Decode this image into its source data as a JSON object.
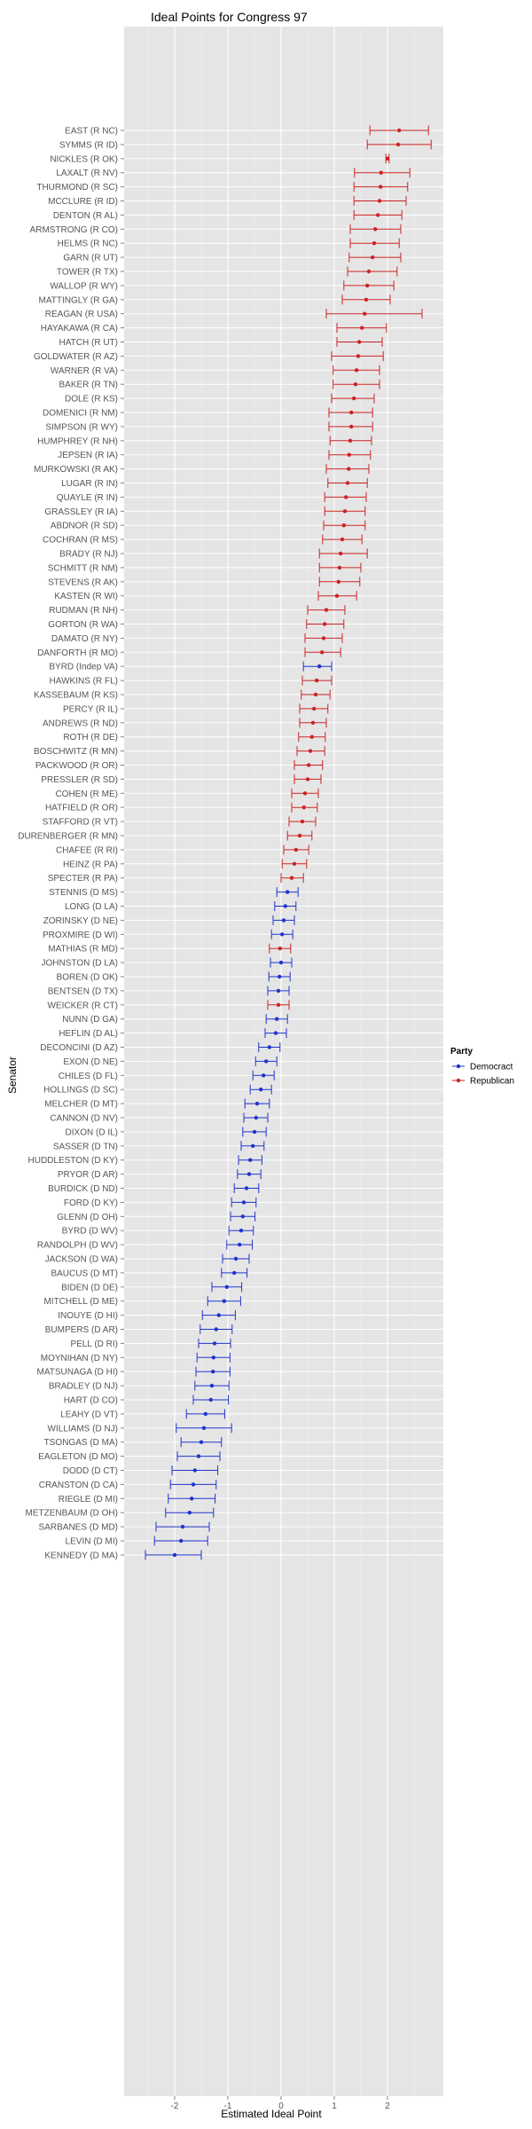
{
  "chart_data": {
    "type": "scatter",
    "title": "Ideal Points for Congress 97",
    "xlabel": "Estimated Ideal Point",
    "ylabel": "Senator",
    "xlim": [
      -2.95,
      3.05
    ],
    "x_ticks": [
      -2,
      -1,
      0,
      1,
      2
    ],
    "grid": true,
    "legend": {
      "title": "Party",
      "position": "right",
      "entries": [
        {
          "name": "Democract",
          "color": "#1f33cc"
        },
        {
          "name": "Republican",
          "color": "#cc2222"
        }
      ]
    },
    "colors": {
      "D": "#1f33cc",
      "R": "#cc2222",
      "panel": "#e5e5e5",
      "grid": "#ffffff"
    },
    "senators": [
      {
        "name": "EAST (R NC)",
        "party": "R",
        "x": 2.22,
        "lo": 1.67,
        "hi": 2.77
      },
      {
        "name": "SYMMS (R ID)",
        "party": "R",
        "x": 2.2,
        "lo": 1.62,
        "hi": 2.82
      },
      {
        "name": "NICKLES (R OK)",
        "party": "R",
        "x": 2.0,
        "lo": 1.97,
        "hi": 2.03
      },
      {
        "name": "LAXALT (R NV)",
        "party": "R",
        "x": 1.88,
        "lo": 1.38,
        "hi": 2.42
      },
      {
        "name": "THURMOND (R SC)",
        "party": "R",
        "x": 1.87,
        "lo": 1.37,
        "hi": 2.38
      },
      {
        "name": "MCCLURE (R ID)",
        "party": "R",
        "x": 1.85,
        "lo": 1.37,
        "hi": 2.35
      },
      {
        "name": "DENTON (R AL)",
        "party": "R",
        "x": 1.82,
        "lo": 1.37,
        "hi": 2.27
      },
      {
        "name": "ARMSTRONG (R CO)",
        "party": "R",
        "x": 1.77,
        "lo": 1.3,
        "hi": 2.25
      },
      {
        "name": "HELMS (R NC)",
        "party": "R",
        "x": 1.75,
        "lo": 1.3,
        "hi": 2.22
      },
      {
        "name": "GARN (R UT)",
        "party": "R",
        "x": 1.72,
        "lo": 1.28,
        "hi": 2.25
      },
      {
        "name": "TOWER (R TX)",
        "party": "R",
        "x": 1.65,
        "lo": 1.25,
        "hi": 2.18
      },
      {
        "name": "WALLOP (R WY)",
        "party": "R",
        "x": 1.62,
        "lo": 1.18,
        "hi": 2.12
      },
      {
        "name": "MATTINGLY (R GA)",
        "party": "R",
        "x": 1.6,
        "lo": 1.15,
        "hi": 2.05
      },
      {
        "name": "REAGAN (R USA)",
        "party": "R",
        "x": 1.57,
        "lo": 0.85,
        "hi": 2.65
      },
      {
        "name": "HAYAKAWA (R CA)",
        "party": "R",
        "x": 1.52,
        "lo": 1.05,
        "hi": 1.98
      },
      {
        "name": "HATCH (R UT)",
        "party": "R",
        "x": 1.47,
        "lo": 1.05,
        "hi": 1.9
      },
      {
        "name": "GOLDWATER (R AZ)",
        "party": "R",
        "x": 1.45,
        "lo": 0.95,
        "hi": 1.92
      },
      {
        "name": "WARNER (R VA)",
        "party": "R",
        "x": 1.42,
        "lo": 0.98,
        "hi": 1.85
      },
      {
        "name": "BAKER (R TN)",
        "party": "R",
        "x": 1.4,
        "lo": 0.98,
        "hi": 1.85
      },
      {
        "name": "DOLE (R KS)",
        "party": "R",
        "x": 1.37,
        "lo": 0.95,
        "hi": 1.75
      },
      {
        "name": "DOMENICI (R NM)",
        "party": "R",
        "x": 1.32,
        "lo": 0.9,
        "hi": 1.72
      },
      {
        "name": "SIMPSON (R WY)",
        "party": "R",
        "x": 1.32,
        "lo": 0.9,
        "hi": 1.72
      },
      {
        "name": "HUMPHREY (R NH)",
        "party": "R",
        "x": 1.3,
        "lo": 0.92,
        "hi": 1.7
      },
      {
        "name": "JEPSEN (R IA)",
        "party": "R",
        "x": 1.28,
        "lo": 0.9,
        "hi": 1.68
      },
      {
        "name": "MURKOWSKI (R AK)",
        "party": "R",
        "x": 1.27,
        "lo": 0.85,
        "hi": 1.65
      },
      {
        "name": "LUGAR (R IN)",
        "party": "R",
        "x": 1.25,
        "lo": 0.88,
        "hi": 1.62
      },
      {
        "name": "QUAYLE (R IN)",
        "party": "R",
        "x": 1.22,
        "lo": 0.82,
        "hi": 1.6
      },
      {
        "name": "GRASSLEY (R IA)",
        "party": "R",
        "x": 1.2,
        "lo": 0.82,
        "hi": 1.58
      },
      {
        "name": "ABDNOR (R SD)",
        "party": "R",
        "x": 1.18,
        "lo": 0.8,
        "hi": 1.58
      },
      {
        "name": "COCHRAN (R MS)",
        "party": "R",
        "x": 1.15,
        "lo": 0.78,
        "hi": 1.52
      },
      {
        "name": "BRADY (R NJ)",
        "party": "R",
        "x": 1.12,
        "lo": 0.72,
        "hi": 1.62
      },
      {
        "name": "SCHMITT (R NM)",
        "party": "R",
        "x": 1.1,
        "lo": 0.72,
        "hi": 1.5
      },
      {
        "name": "STEVENS (R AK)",
        "party": "R",
        "x": 1.08,
        "lo": 0.72,
        "hi": 1.48
      },
      {
        "name": "KASTEN (R WI)",
        "party": "R",
        "x": 1.05,
        "lo": 0.7,
        "hi": 1.42
      },
      {
        "name": "RUDMAN (R NH)",
        "party": "R",
        "x": 0.85,
        "lo": 0.5,
        "hi": 1.2
      },
      {
        "name": "GORTON (R WA)",
        "party": "R",
        "x": 0.82,
        "lo": 0.48,
        "hi": 1.18
      },
      {
        "name": "DAMATO (R NY)",
        "party": "R",
        "x": 0.8,
        "lo": 0.45,
        "hi": 1.15
      },
      {
        "name": "DANFORTH (R MO)",
        "party": "R",
        "x": 0.77,
        "lo": 0.45,
        "hi": 1.12
      },
      {
        "name": "BYRD (Indep VA)",
        "party": "D",
        "x": 0.72,
        "lo": 0.42,
        "hi": 0.95
      },
      {
        "name": "HAWKINS (R FL)",
        "party": "R",
        "x": 0.67,
        "lo": 0.4,
        "hi": 0.95
      },
      {
        "name": "KASSEBAUM (R KS)",
        "party": "R",
        "x": 0.65,
        "lo": 0.38,
        "hi": 0.92
      },
      {
        "name": "PERCY (R IL)",
        "party": "R",
        "x": 0.62,
        "lo": 0.35,
        "hi": 0.88
      },
      {
        "name": "ANDREWS (R ND)",
        "party": "R",
        "x": 0.6,
        "lo": 0.35,
        "hi": 0.85
      },
      {
        "name": "ROTH (R DE)",
        "party": "R",
        "x": 0.58,
        "lo": 0.33,
        "hi": 0.83
      },
      {
        "name": "BOSCHWITZ (R MN)",
        "party": "R",
        "x": 0.55,
        "lo": 0.3,
        "hi": 0.82
      },
      {
        "name": "PACKWOOD (R OR)",
        "party": "R",
        "x": 0.52,
        "lo": 0.25,
        "hi": 0.78
      },
      {
        "name": "PRESSLER (R SD)",
        "party": "R",
        "x": 0.5,
        "lo": 0.25,
        "hi": 0.75
      },
      {
        "name": "COHEN (R ME)",
        "party": "R",
        "x": 0.45,
        "lo": 0.2,
        "hi": 0.7
      },
      {
        "name": "HATFIELD (R OR)",
        "party": "R",
        "x": 0.43,
        "lo": 0.2,
        "hi": 0.68
      },
      {
        "name": "STAFFORD (R VT)",
        "party": "R",
        "x": 0.4,
        "lo": 0.15,
        "hi": 0.65
      },
      {
        "name": "DURENBERGER (R MN)",
        "party": "R",
        "x": 0.35,
        "lo": 0.12,
        "hi": 0.58
      },
      {
        "name": "CHAFEE (R RI)",
        "party": "R",
        "x": 0.28,
        "lo": 0.05,
        "hi": 0.52
      },
      {
        "name": "HEINZ (R PA)",
        "party": "R",
        "x": 0.25,
        "lo": 0.02,
        "hi": 0.48
      },
      {
        "name": "SPECTER (R PA)",
        "party": "R",
        "x": 0.2,
        "lo": 0.0,
        "hi": 0.42
      },
      {
        "name": "STENNIS (D MS)",
        "party": "D",
        "x": 0.12,
        "lo": -0.08,
        "hi": 0.32
      },
      {
        "name": "LONG (D LA)",
        "party": "D",
        "x": 0.08,
        "lo": -0.12,
        "hi": 0.28
      },
      {
        "name": "ZORINSKY (D NE)",
        "party": "D",
        "x": 0.05,
        "lo": -0.15,
        "hi": 0.25
      },
      {
        "name": "PROXMIRE (D WI)",
        "party": "D",
        "x": 0.02,
        "lo": -0.18,
        "hi": 0.22
      },
      {
        "name": "MATHIAS (R MD)",
        "party": "R",
        "x": -0.02,
        "lo": -0.22,
        "hi": 0.18
      },
      {
        "name": "JOHNSTON (D LA)",
        "party": "D",
        "x": 0.0,
        "lo": -0.2,
        "hi": 0.2
      },
      {
        "name": "BOREN (D OK)",
        "party": "D",
        "x": -0.03,
        "lo": -0.23,
        "hi": 0.17
      },
      {
        "name": "BENTSEN (D TX)",
        "party": "D",
        "x": -0.05,
        "lo": -0.25,
        "hi": 0.15
      },
      {
        "name": "WEICKER (R CT)",
        "party": "R",
        "x": -0.05,
        "lo": -0.25,
        "hi": 0.15
      },
      {
        "name": "NUNN (D GA)",
        "party": "D",
        "x": -0.08,
        "lo": -0.28,
        "hi": 0.12
      },
      {
        "name": "HEFLIN (D AL)",
        "party": "D",
        "x": -0.1,
        "lo": -0.3,
        "hi": 0.1
      },
      {
        "name": "DECONCINI (D AZ)",
        "party": "D",
        "x": -0.22,
        "lo": -0.42,
        "hi": -0.02
      },
      {
        "name": "EXON (D NE)",
        "party": "D",
        "x": -0.28,
        "lo": -0.48,
        "hi": -0.08
      },
      {
        "name": "CHILES (D FL)",
        "party": "D",
        "x": -0.33,
        "lo": -0.53,
        "hi": -0.13
      },
      {
        "name": "HOLLINGS (D SC)",
        "party": "D",
        "x": -0.38,
        "lo": -0.58,
        "hi": -0.18
      },
      {
        "name": "MELCHER (D MT)",
        "party": "D",
        "x": -0.45,
        "lo": -0.68,
        "hi": -0.22
      },
      {
        "name": "CANNON (D NV)",
        "party": "D",
        "x": -0.47,
        "lo": -0.7,
        "hi": -0.25
      },
      {
        "name": "DIXON (D IL)",
        "party": "D",
        "x": -0.5,
        "lo": -0.72,
        "hi": -0.28
      },
      {
        "name": "SASSER (D TN)",
        "party": "D",
        "x": -0.53,
        "lo": -0.75,
        "hi": -0.32
      },
      {
        "name": "HUDDLESTON (D KY)",
        "party": "D",
        "x": -0.58,
        "lo": -0.8,
        "hi": -0.36
      },
      {
        "name": "PRYOR (D AR)",
        "party": "D",
        "x": -0.6,
        "lo": -0.82,
        "hi": -0.38
      },
      {
        "name": "BURDICK (D ND)",
        "party": "D",
        "x": -0.65,
        "lo": -0.88,
        "hi": -0.42
      },
      {
        "name": "FORD (D KY)",
        "party": "D",
        "x": -0.7,
        "lo": -0.93,
        "hi": -0.47
      },
      {
        "name": "GLENN (D OH)",
        "party": "D",
        "x": -0.72,
        "lo": -0.95,
        "hi": -0.49
      },
      {
        "name": "BYRD (D WV)",
        "party": "D",
        "x": -0.75,
        "lo": -0.98,
        "hi": -0.52
      },
      {
        "name": "RANDOLPH (D WV)",
        "party": "D",
        "x": -0.78,
        "lo": -1.02,
        "hi": -0.54
      },
      {
        "name": "JACKSON (D WA)",
        "party": "D",
        "x": -0.85,
        "lo": -1.1,
        "hi": -0.6
      },
      {
        "name": "BAUCUS (D MT)",
        "party": "D",
        "x": -0.88,
        "lo": -1.12,
        "hi": -0.64
      },
      {
        "name": "BIDEN (D DE)",
        "party": "D",
        "x": -1.02,
        "lo": -1.3,
        "hi": -0.74
      },
      {
        "name": "MITCHELL (D ME)",
        "party": "D",
        "x": -1.07,
        "lo": -1.38,
        "hi": -0.76
      },
      {
        "name": "INOUYE (D HI)",
        "party": "D",
        "x": -1.17,
        "lo": -1.48,
        "hi": -0.86
      },
      {
        "name": "BUMPERS (D AR)",
        "party": "D",
        "x": -1.22,
        "lo": -1.52,
        "hi": -0.92
      },
      {
        "name": "PELL (D RI)",
        "party": "D",
        "x": -1.25,
        "lo": -1.55,
        "hi": -0.95
      },
      {
        "name": "MOYNIHAN (D NY)",
        "party": "D",
        "x": -1.27,
        "lo": -1.58,
        "hi": -0.96
      },
      {
        "name": "MATSUNAGA (D HI)",
        "party": "D",
        "x": -1.28,
        "lo": -1.6,
        "hi": -0.96
      },
      {
        "name": "BRADLEY (D NJ)",
        "party": "D",
        "x": -1.3,
        "lo": -1.62,
        "hi": -0.98
      },
      {
        "name": "HART (D CO)",
        "party": "D",
        "x": -1.32,
        "lo": -1.65,
        "hi": -0.99
      },
      {
        "name": "LEAHY (D VT)",
        "party": "D",
        "x": -1.42,
        "lo": -1.78,
        "hi": -1.06
      },
      {
        "name": "WILLIAMS (D NJ)",
        "party": "D",
        "x": -1.45,
        "lo": -1.97,
        "hi": -0.93
      },
      {
        "name": "TSONGAS (D MA)",
        "party": "D",
        "x": -1.5,
        "lo": -1.88,
        "hi": -1.12
      },
      {
        "name": "EAGLETON (D MO)",
        "party": "D",
        "x": -1.55,
        "lo": -1.95,
        "hi": -1.15
      },
      {
        "name": "DODD (D CT)",
        "party": "D",
        "x": -1.62,
        "lo": -2.05,
        "hi": -1.19
      },
      {
        "name": "CRANSTON (D CA)",
        "party": "D",
        "x": -1.65,
        "lo": -2.08,
        "hi": -1.22
      },
      {
        "name": "RIEGLE (D MI)",
        "party": "D",
        "x": -1.68,
        "lo": -2.12,
        "hi": -1.24
      },
      {
        "name": "METZENBAUM (D OH)",
        "party": "D",
        "x": -1.72,
        "lo": -2.17,
        "hi": -1.27
      },
      {
        "name": "SARBANES (D MD)",
        "party": "D",
        "x": -1.85,
        "lo": -2.35,
        "hi": -1.35
      },
      {
        "name": "LEVIN (D MI)",
        "party": "D",
        "x": -1.88,
        "lo": -2.38,
        "hi": -1.38
      },
      {
        "name": "KENNEDY (D MA)",
        "party": "D",
        "x": -2.0,
        "lo": -2.55,
        "hi": -1.5
      }
    ]
  }
}
